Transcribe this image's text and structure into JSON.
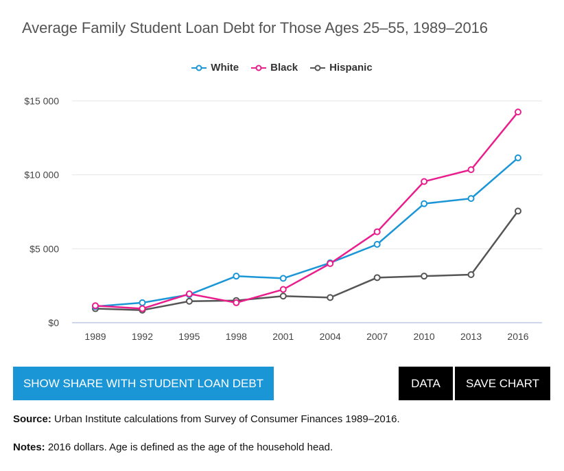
{
  "chart_data": {
    "type": "line",
    "title": "Average Family Student Loan Debt for Those Ages 25–55, 1989–2016",
    "xlabel": "",
    "ylabel": "",
    "categories": [
      "1989",
      "1992",
      "1995",
      "1998",
      "2001",
      "2004",
      "2007",
      "2010",
      "2013",
      "2016"
    ],
    "series": [
      {
        "name": "White",
        "color": "#1a96d7",
        "values": [
          1100,
          1350,
          1900,
          3150,
          3000,
          4050,
          5300,
          8050,
          8400,
          11150
        ]
      },
      {
        "name": "Black",
        "color": "#e91e8c",
        "values": [
          1150,
          950,
          1950,
          1350,
          2250,
          4000,
          6150,
          9550,
          10350,
          14250
        ]
      },
      {
        "name": "Hispanic",
        "color": "#555555",
        "values": [
          950,
          850,
          1450,
          1500,
          1800,
          1700,
          3050,
          3150,
          3250,
          7550
        ]
      }
    ],
    "yticks": [
      0,
      5000,
      10000,
      15000
    ],
    "ytick_labels": [
      "$0",
      "$5 000",
      "$10 000",
      "$15 000"
    ],
    "ylim": [
      0,
      15000
    ],
    "grid": true,
    "legend_position": "top-center"
  },
  "buttons": {
    "share": "SHOW SHARE WITH STUDENT LOAN DEBT",
    "data": "DATA",
    "save": "SAVE CHART"
  },
  "source": {
    "label": "Source:",
    "text": " Urban Institute calculations from Survey of Consumer Finances 1989–2016."
  },
  "notes": {
    "label": "Notes:",
    "text": " 2016 dollars. Age is defined as the age of the household head."
  }
}
